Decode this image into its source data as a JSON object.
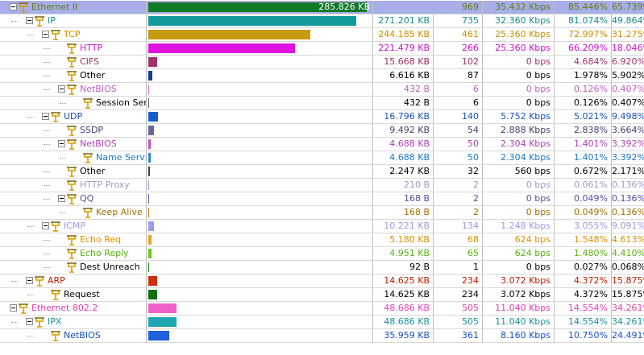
{
  "rows": [
    {
      "name": "Ethernet II",
      "depth": 0,
      "exp": true,
      "bar": 0.975,
      "barColor": "#127a27",
      "color": "#5a7f12",
      "bytes": "285.826 KB",
      "pkts": "969",
      "bps": "35.432 Kbps",
      "pct1": "85.446%",
      "pct2": "65.739%",
      "selected": true
    },
    {
      "name": "IP",
      "depth": 1,
      "exp": true,
      "bar": 0.927,
      "barColor": "#139a9a",
      "color": "#1a8c8c",
      "bytes": "271.201 KB",
      "pkts": "735",
      "bps": "32.360 Kbps",
      "pct1": "81.074%",
      "pct2": "49.864%"
    },
    {
      "name": "TCP",
      "depth": 2,
      "exp": true,
      "bar": 0.722,
      "barColor": "#c89a10",
      "color": "#c88e00",
      "bytes": "244.185 KB",
      "pkts": "461",
      "bps": "25.360 Kbps",
      "pct1": "72.997%",
      "pct2": "31.275%"
    },
    {
      "name": "HTTP",
      "depth": 3,
      "exp": false,
      "bar": 0.655,
      "barColor": "#e012e0",
      "color": "#cc11cc",
      "bytes": "221.479 KB",
      "pkts": "266",
      "bps": "25.360 Kbps",
      "pct1": "66.209%",
      "pct2": "18.046%"
    },
    {
      "name": "CIFS",
      "depth": 3,
      "exp": false,
      "bar": 0.041,
      "barColor": "#a0306a",
      "color": "#a0306a",
      "bytes": "15.668 KB",
      "pkts": "102",
      "bps": "0 bps",
      "pct1": "4.684%",
      "pct2": "6.920%"
    },
    {
      "name": "Other",
      "depth": 3,
      "exp": false,
      "bar": 0.017,
      "barColor": "#1a3a90",
      "color": "#000000",
      "bytes": "6.616 KB",
      "pkts": "87",
      "bps": "0 bps",
      "pct1": "1.978%",
      "pct2": "5.902%"
    },
    {
      "name": "NetBIOS",
      "depth": 3,
      "exp": true,
      "bar": 0.004,
      "barColor": "#d070d0",
      "color": "#c060c0",
      "bytes": "432  B",
      "pkts": "6",
      "bps": "0 bps",
      "pct1": "0.126%",
      "pct2": "0.407%"
    },
    {
      "name": "Session Ser...",
      "depth": 4,
      "exp": false,
      "bar": 0.004,
      "barColor": "#606060",
      "color": "#000000",
      "bytes": "432  B",
      "pkts": "6",
      "bps": "0 bps",
      "pct1": "0.126%",
      "pct2": "0.407%"
    },
    {
      "name": "UDP",
      "depth": 2,
      "exp": true,
      "bar": 0.043,
      "barColor": "#1a60c8",
      "color": "#1a50b0",
      "bytes": "16.796 KB",
      "pkts": "140",
      "bps": "5.752 Kbps",
      "pct1": "5.021%",
      "pct2": "9.498%"
    },
    {
      "name": "SSDP",
      "depth": 3,
      "exp": false,
      "bar": 0.024,
      "barColor": "#686898",
      "color": "#404070",
      "bytes": "9.492 KB",
      "pkts": "54",
      "bps": "2.888 Kbps",
      "pct1": "2.838%",
      "pct2": "3.664%"
    },
    {
      "name": "NetBIOS",
      "depth": 3,
      "exp": true,
      "bar": 0.012,
      "barColor": "#c050c8",
      "color": "#b040b8",
      "bytes": "4.688 KB",
      "pkts": "50",
      "bps": "2.304 Kbps",
      "pct1": "1.401%",
      "pct2": "3.392%"
    },
    {
      "name": "Name Service",
      "depth": 4,
      "exp": false,
      "bar": 0.012,
      "barColor": "#2a88d0",
      "color": "#1a78c0",
      "bytes": "4.688 KB",
      "pkts": "50",
      "bps": "2.304 Kbps",
      "pct1": "1.401%",
      "pct2": "3.392%"
    },
    {
      "name": "Other",
      "depth": 3,
      "exp": false,
      "bar": 0.006,
      "barColor": "#404040",
      "color": "#000000",
      "bytes": "2.247 KB",
      "pkts": "32",
      "bps": "560 bps",
      "pct1": "0.672%",
      "pct2": "2.171%"
    },
    {
      "name": "HTTP Proxy",
      "depth": 3,
      "exp": false,
      "bar": 0.002,
      "barColor": "#9a9ad0",
      "color": "#9a9ad0",
      "bytes": "210  B",
      "pkts": "2",
      "bps": "0 bps",
      "pct1": "0.061%",
      "pct2": "0.136%"
    },
    {
      "name": "QQ",
      "depth": 3,
      "exp": true,
      "bar": 0.002,
      "barColor": "#5858a8",
      "color": "#5050a0",
      "bytes": "168  B",
      "pkts": "2",
      "bps": "0 bps",
      "pct1": "0.049%",
      "pct2": "0.136%"
    },
    {
      "name": "Keep Alive",
      "depth": 4,
      "exp": false,
      "bar": 0.002,
      "barColor": "#b08010",
      "color": "#a07000",
      "bytes": "168  B",
      "pkts": "2",
      "bps": "0 bps",
      "pct1": "0.049%",
      "pct2": "0.136%"
    },
    {
      "name": "ICMP",
      "depth": 2,
      "exp": true,
      "bar": 0.026,
      "barColor": "#9a9af0",
      "color": "#9a9ae0",
      "bytes": "10.221 KB",
      "pkts": "134",
      "bps": "1.248 Kbps",
      "pct1": "3.055%",
      "pct2": "9.091%"
    },
    {
      "name": "Echo Req",
      "depth": 3,
      "exp": false,
      "bar": 0.013,
      "barColor": "#f0a020",
      "color": "#d89000",
      "bytes": "5.180 KB",
      "pkts": "68",
      "bps": "624 bps",
      "pct1": "1.548%",
      "pct2": "4.613%"
    },
    {
      "name": "Echo Reply",
      "depth": 3,
      "exp": false,
      "bar": 0.013,
      "barColor": "#6ac820",
      "color": "#58b010",
      "bytes": "4.951 KB",
      "pkts": "65",
      "bps": "624 bps",
      "pct1": "1.480%",
      "pct2": "4.410%"
    },
    {
      "name": "Dest Unreach",
      "depth": 3,
      "exp": false,
      "bar": 0.002,
      "barColor": "#207a20",
      "color": "#000000",
      "bytes": "92  B",
      "pkts": "1",
      "bps": "0 bps",
      "pct1": "0.027%",
      "pct2": "0.068%"
    },
    {
      "name": "ARP",
      "depth": 1,
      "exp": true,
      "bar": 0.038,
      "barColor": "#c83010",
      "color": "#b82000",
      "bytes": "14.625 KB",
      "pkts": "234",
      "bps": "3.072 Kbps",
      "pct1": "4.372%",
      "pct2": "15.875%"
    },
    {
      "name": "Request",
      "depth": 2,
      "exp": false,
      "bar": 0.038,
      "barColor": "#107010",
      "color": "#000000",
      "bytes": "14.625 KB",
      "pkts": "234",
      "bps": "3.072 Kbps",
      "pct1": "4.372%",
      "pct2": "15.875%"
    },
    {
      "name": "Ethernet 802.2",
      "depth": 0,
      "exp": true,
      "bar": 0.127,
      "barColor": "#f060c8",
      "color": "#e040b0",
      "bytes": "48.686 KB",
      "pkts": "505",
      "bps": "11.040 Kbps",
      "pct1": "14.554%",
      "pct2": "34.261%"
    },
    {
      "name": "IPX",
      "depth": 1,
      "exp": true,
      "bar": 0.127,
      "barColor": "#20a8b0",
      "color": "#1890a0",
      "bytes": "48.686 KB",
      "pkts": "505",
      "bps": "11.040 Kbps",
      "pct1": "14.554%",
      "pct2": "34.261%"
    },
    {
      "name": "NetBIOS",
      "depth": 2,
      "exp": false,
      "bar": 0.094,
      "barColor": "#2060d8",
      "color": "#1a50c0",
      "bytes": "35.959 KB",
      "pkts": "361",
      "bps": "8.160 Kbps",
      "pct1": "10.750%",
      "pct2": "24.491%"
    }
  ],
  "icons": {
    "node": "protocol-node-icon",
    "expander": "collapse-toggle-icon"
  }
}
